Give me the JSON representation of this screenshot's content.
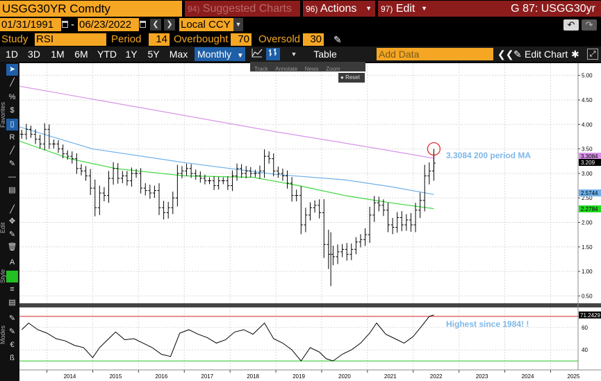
{
  "header": {
    "ticker": "USGG30YR Comdty",
    "suggested": {
      "num": "94)",
      "label": "Suggested Charts"
    },
    "actions": {
      "num": "96)",
      "label": "Actions"
    },
    "edit": {
      "num": "97)",
      "label": "Edit"
    },
    "title": "G 87: USGG30yr"
  },
  "range": {
    "start": "01/31/1991",
    "end": "06/23/2022",
    "separator": "-",
    "currency": "Local CCY"
  },
  "study": {
    "label": "Study",
    "name": "RSI",
    "period_label": "Period",
    "period": "14",
    "overbought_label": "Overbought",
    "overbought": "70",
    "oversold_label": "Oversold",
    "oversold": "30"
  },
  "periods": [
    "1D",
    "3D",
    "1M",
    "6M",
    "YTD",
    "1Y",
    "5Y",
    "Max"
  ],
  "frequency": "Monthly",
  "table_label": "Table",
  "add_data_placeholder": "Add Data",
  "edit_chart_label": "Edit Chart",
  "mini_toolbar": [
    "Track",
    "Annotate",
    "News",
    "Zoom"
  ],
  "reset_label": "Reset",
  "toolbar_labels": {
    "favorites": "Favorites",
    "edit": "Edit",
    "style": "Style",
    "modes": "Modes"
  },
  "icons": [
    "arrow-icon",
    "pencil-icon",
    "percent-icon",
    "dollar-icon",
    "candlestick-icon",
    "line-icon",
    "ruler-icon"
  ],
  "colors": {
    "accent_orange": "#f5a623",
    "header_red": "#8c1c1c",
    "selection_blue": "#1e5fa8",
    "ma200": "#d793e6",
    "ma_blue": "#6fb0e8",
    "ma_green": "#3ad83a",
    "annotation": "#7fb8e8"
  },
  "chart_data": {
    "type": "bar",
    "x_axis": {
      "ticks": [
        "2014",
        "2015",
        "2016",
        "2017",
        "2018",
        "2019",
        "2020",
        "2021",
        "2022",
        "2023",
        "2024",
        "2025"
      ],
      "xlim": [
        2013.4,
        2025.6
      ]
    },
    "price_panel": {
      "ylim": [
        0.35,
        5.25
      ],
      "y_ticks": [
        "0.50",
        "1.00",
        "1.50",
        "2.00",
        "2.50",
        "3.00",
        "3.50",
        "4.00",
        "4.50",
        "5.00"
      ],
      "series": [
        {
          "name": "USGG30YR",
          "type": "ohlc_bars",
          "close": [
            [
              2013.45,
              3.8
            ],
            [
              2013.55,
              3.9
            ],
            [
              2013.65,
              3.8
            ],
            [
              2013.75,
              3.7
            ],
            [
              2013.85,
              3.6
            ],
            [
              2013.95,
              3.9
            ],
            [
              2014.05,
              3.6
            ],
            [
              2014.15,
              3.6
            ],
            [
              2014.25,
              3.5
            ],
            [
              2014.35,
              3.4
            ],
            [
              2014.45,
              3.35
            ],
            [
              2014.55,
              3.3
            ],
            [
              2014.65,
              3.1
            ],
            [
              2014.75,
              3.05
            ],
            [
              2014.85,
              2.95
            ],
            [
              2014.95,
              2.7
            ],
            [
              2015.05,
              2.3
            ],
            [
              2015.15,
              2.6
            ],
            [
              2015.25,
              2.55
            ],
            [
              2015.35,
              2.9
            ],
            [
              2015.45,
              3.1
            ],
            [
              2015.55,
              2.9
            ],
            [
              2015.65,
              2.95
            ],
            [
              2015.75,
              2.85
            ],
            [
              2015.85,
              3.0
            ],
            [
              2015.95,
              3.0
            ],
            [
              2016.05,
              2.7
            ],
            [
              2016.15,
              2.65
            ],
            [
              2016.25,
              2.6
            ],
            [
              2016.35,
              2.65
            ],
            [
              2016.45,
              2.3
            ],
            [
              2016.55,
              2.2
            ],
            [
              2016.65,
              2.3
            ],
            [
              2016.75,
              2.5
            ],
            [
              2016.85,
              3.0
            ],
            [
              2016.95,
              3.05
            ],
            [
              2017.05,
              3.1
            ],
            [
              2017.15,
              3.0
            ],
            [
              2017.25,
              2.95
            ],
            [
              2017.35,
              2.9
            ],
            [
              2017.45,
              2.85
            ],
            [
              2017.55,
              2.85
            ],
            [
              2017.65,
              2.75
            ],
            [
              2017.75,
              2.85
            ],
            [
              2017.85,
              2.85
            ],
            [
              2017.95,
              2.75
            ],
            [
              2018.05,
              2.95
            ],
            [
              2018.15,
              3.1
            ],
            [
              2018.25,
              3.0
            ],
            [
              2018.35,
              3.05
            ],
            [
              2018.45,
              3.0
            ],
            [
              2018.55,
              3.0
            ],
            [
              2018.65,
              3.05
            ],
            [
              2018.75,
              3.35
            ],
            [
              2018.85,
              3.3
            ],
            [
              2018.95,
              3.05
            ],
            [
              2019.05,
              3.0
            ],
            [
              2019.15,
              2.95
            ],
            [
              2019.25,
              2.8
            ],
            [
              2019.35,
              2.55
            ],
            [
              2019.45,
              2.55
            ],
            [
              2019.55,
              1.95
            ],
            [
              2019.65,
              2.15
            ],
            [
              2019.75,
              2.3
            ],
            [
              2019.85,
              2.35
            ],
            [
              2019.95,
              2.2
            ],
            [
              2020.05,
              1.55
            ],
            [
              2020.15,
              1.35
            ],
            [
              2020.25,
              1.3
            ],
            [
              2020.35,
              1.4
            ],
            [
              2020.45,
              1.45
            ],
            [
              2020.55,
              1.35
            ],
            [
              2020.65,
              1.45
            ],
            [
              2020.75,
              1.6
            ],
            [
              2020.85,
              1.65
            ],
            [
              2020.95,
              1.75
            ],
            [
              2021.05,
              2.15
            ],
            [
              2021.15,
              2.4
            ],
            [
              2021.25,
              2.35
            ],
            [
              2021.35,
              2.25
            ],
            [
              2021.45,
              1.95
            ],
            [
              2021.55,
              1.9
            ],
            [
              2021.65,
              2.1
            ],
            [
              2021.75,
              1.95
            ],
            [
              2021.85,
              2.05
            ],
            [
              2021.95,
              1.95
            ],
            [
              2022.05,
              2.25
            ],
            [
              2022.15,
              2.45
            ],
            [
              2022.25,
              2.95
            ],
            [
              2022.35,
              3.05
            ],
            [
              2022.45,
              3.21
            ]
          ],
          "last": "3.209"
        },
        {
          "name": "200 period MA",
          "type": "line",
          "points": [
            [
              2013.4,
              4.78
            ],
            [
              2016.0,
              4.35
            ],
            [
              2019.0,
              3.85
            ],
            [
              2020.5,
              3.62
            ],
            [
              2022.45,
              3.31
            ]
          ],
          "last": "3.3084"
        },
        {
          "name": "",
          "type": "line",
          "points": [
            [
              2013.4,
              3.95
            ],
            [
              2015.0,
              3.5
            ],
            [
              2017.0,
              3.22
            ],
            [
              2019.0,
              2.98
            ],
            [
              2020.5,
              2.87
            ],
            [
              2021.5,
              2.73
            ],
            [
              2022.45,
              2.57
            ]
          ],
          "last": "2.5744"
        },
        {
          "name": "",
          "type": "line",
          "points": [
            [
              2013.4,
              3.66
            ],
            [
              2014.5,
              3.3
            ],
            [
              2015.5,
              3.1
            ],
            [
              2017.0,
              2.95
            ],
            [
              2018.5,
              2.92
            ],
            [
              2019.5,
              2.75
            ],
            [
              2020.5,
              2.55
            ],
            [
              2021.5,
              2.4
            ],
            [
              2022.45,
              2.28
            ]
          ],
          "last": "2.2784"
        }
      ],
      "annotations": [
        {
          "text": "3.3084 200 period MA"
        }
      ]
    },
    "rsi_panel": {
      "ylim": [
        22,
        78
      ],
      "y_ticks": [
        "40",
        "60"
      ],
      "overbought": 70,
      "oversold": 30,
      "last": "71.2429",
      "series": {
        "name": "RSI",
        "points": [
          [
            2013.45,
            58
          ],
          [
            2013.6,
            64
          ],
          [
            2013.8,
            58
          ],
          [
            2014.0,
            55
          ],
          [
            2014.2,
            50
          ],
          [
            2014.4,
            48
          ],
          [
            2014.6,
            44
          ],
          [
            2014.8,
            42
          ],
          [
            2015.0,
            33
          ],
          [
            2015.15,
            42
          ],
          [
            2015.35,
            50
          ],
          [
            2015.5,
            56
          ],
          [
            2015.7,
            49
          ],
          [
            2015.9,
            50
          ],
          [
            2016.1,
            46
          ],
          [
            2016.3,
            42
          ],
          [
            2016.5,
            36
          ],
          [
            2016.7,
            34
          ],
          [
            2016.9,
            55
          ],
          [
            2017.1,
            58
          ],
          [
            2017.3,
            54
          ],
          [
            2017.5,
            51
          ],
          [
            2017.7,
            46
          ],
          [
            2017.9,
            49
          ],
          [
            2018.1,
            56
          ],
          [
            2018.3,
            58
          ],
          [
            2018.5,
            54
          ],
          [
            2018.75,
            64
          ],
          [
            2018.95,
            50
          ],
          [
            2019.15,
            46
          ],
          [
            2019.35,
            40
          ],
          [
            2019.55,
            30
          ],
          [
            2019.75,
            42
          ],
          [
            2019.95,
            38
          ],
          [
            2020.1,
            32
          ],
          [
            2020.25,
            30
          ],
          [
            2020.45,
            36
          ],
          [
            2020.65,
            40
          ],
          [
            2020.85,
            46
          ],
          [
            2021.05,
            55
          ],
          [
            2021.2,
            64
          ],
          [
            2021.4,
            54
          ],
          [
            2021.6,
            50
          ],
          [
            2021.8,
            46
          ],
          [
            2022.0,
            52
          ],
          [
            2022.2,
            62
          ],
          [
            2022.35,
            70
          ],
          [
            2022.45,
            71.24
          ]
        ]
      },
      "annotations": [
        {
          "text": "Highest since 1984! !"
        }
      ]
    }
  }
}
